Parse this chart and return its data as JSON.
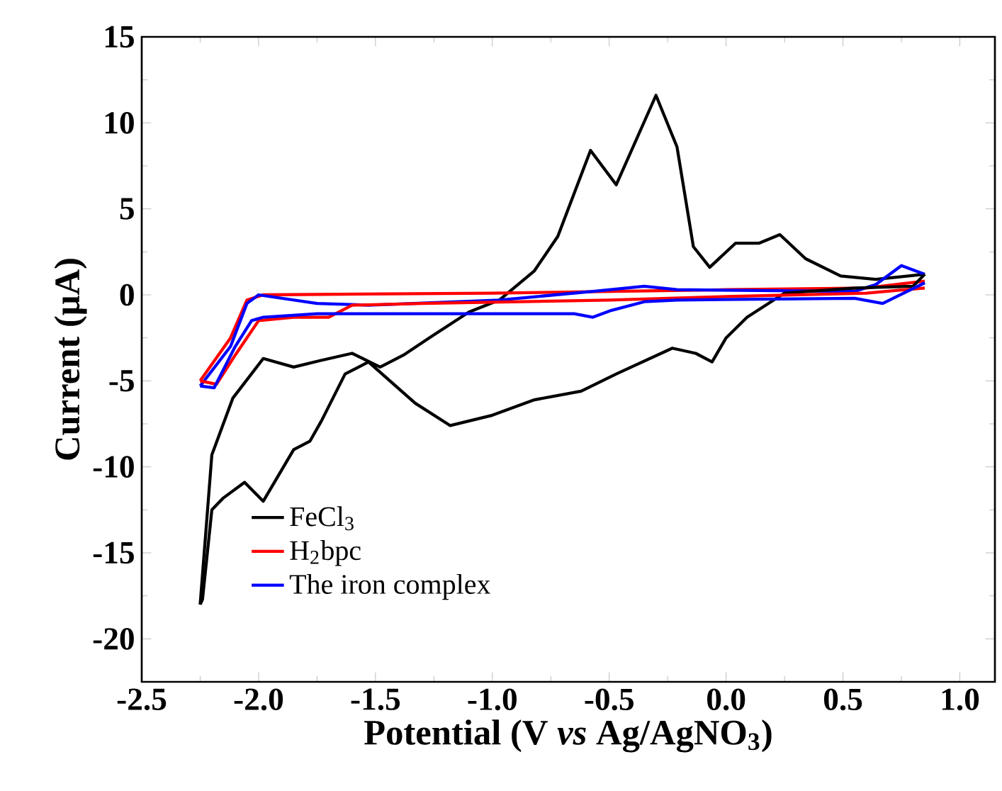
{
  "chart_data": {
    "type": "line",
    "xlabel": "Potential (V *vs* Ag/AgNO$_{3}$)",
    "ylabel": "Current (μA)",
    "xlim": [
      -2.5,
      1.15
    ],
    "ylim": [
      -22.5,
      15
    ],
    "xticks": [
      -2.5,
      {
        "value": -2.0,
        "label": "-2.0"
      },
      -1.5,
      {
        "value": -1.0,
        "label": "-1.0"
      },
      -0.5,
      {
        "value": 0,
        "label": "0.0"
      },
      0.5,
      {
        "value": 1.0,
        "label": "1.0"
      }
    ],
    "yticks": [
      -20,
      -15,
      -10,
      -5,
      0,
      5,
      10,
      15
    ],
    "legend": "bottom left",
    "marker": "none",
    "line_style": "solid",
    "series": [
      {
        "name": "FeCl$_{3}$",
        "color": "#000000",
        "x": [
          -2.25,
          -2.2,
          -2.11,
          -1.98,
          -1.85,
          -1.73,
          -1.6,
          -1.48,
          -1.38,
          -1.27,
          -1.1,
          -0.97,
          -0.82,
          -0.72,
          -0.58,
          -0.47,
          -0.3,
          -0.21,
          -0.14,
          -0.07,
          0.04,
          0.14,
          0.23,
          0.34,
          0.49,
          0.64,
          0.85
        ],
        "values": [
          -18,
          -9.3,
          -6.0,
          -3.7,
          -4.2,
          -3.8,
          -3.4,
          -4.2,
          -3.5,
          -2.5,
          -1.0,
          -0.3,
          1.4,
          3.4,
          8.4,
          6.4,
          11.6,
          8.6,
          2.8,
          1.6,
          3.0,
          3.0,
          3.5,
          2.1,
          1.1,
          0.9,
          1.2
        ]
      },
      {
        "name": "H$_{2}$bpc",
        "color": "#ff0000",
        "x": [
          -2.25,
          -2.12,
          -2.05,
          -1.98,
          -1.0,
          0.0,
          0.6,
          0.85
        ],
        "values": [
          -5.0,
          -2.5,
          -0.3,
          0.0,
          0.1,
          0.3,
          0.4,
          0.8
        ]
      },
      {
        "name": "The iron complex",
        "color": "#0000ff",
        "x": [
          -2.25,
          -2.12,
          -2.05,
          -2.0,
          -1.75,
          -1.53,
          -0.97,
          -0.57,
          -0.35,
          -0.21,
          0.55,
          0.64,
          0.75,
          0.85
        ],
        "values": [
          -5.3,
          -3.0,
          -0.5,
          0.0,
          -0.5,
          -0.6,
          -0.3,
          0.2,
          0.5,
          0.3,
          0.2,
          0.6,
          1.7,
          1.2
        ]
      },
      {
        "color": "#000000",
        "x": [
          0.85,
          0.8,
          0.55,
          0.25,
          0.09,
          0.0,
          -0.06,
          -0.13,
          -0.23,
          -0.47,
          -0.62,
          -0.82,
          -1.0,
          -1.18,
          -1.33,
          -1.53,
          -1.63,
          -1.73,
          -1.78,
          -1.85,
          -1.98,
          -2.06,
          -2.15,
          -2.2,
          -2.24,
          -2.25
        ],
        "values": [
          1.2,
          0.5,
          0.4,
          0.1,
          -1.3,
          -2.5,
          -3.9,
          -3.4,
          -3.1,
          -4.6,
          -5.6,
          -6.1,
          -7.0,
          -7.6,
          -6.3,
          -3.9,
          -4.6,
          -7.3,
          -8.5,
          -9.0,
          -12.0,
          -10.9,
          -11.8,
          -12.5,
          -17.7,
          -18
        ]
      },
      {
        "color": "#ff0000",
        "x": [
          0.85,
          0.6,
          0.0,
          -0.5,
          -1.3,
          -1.6,
          -1.7,
          -1.85,
          -2.0,
          -2.1,
          -2.18,
          -2.25
        ],
        "values": [
          0.4,
          0.1,
          -0.1,
          -0.3,
          -0.5,
          -0.6,
          -1.3,
          -1.3,
          -1.5,
          -3.5,
          -5.2,
          -5.0
        ]
      },
      {
        "color": "#0000ff",
        "x": [
          0.85,
          0.67,
          0.55,
          -0.21,
          -0.35,
          -0.49,
          -0.57,
          -0.65,
          -1.75,
          -1.98,
          -2.03,
          -2.1,
          -2.19,
          -2.25
        ],
        "values": [
          0.7,
          -0.5,
          -0.2,
          -0.3,
          -0.4,
          -0.9,
          -1.3,
          -1.1,
          -1.1,
          -1.3,
          -1.5,
          -3.0,
          -5.4,
          -5.3
        ]
      }
    ]
  }
}
